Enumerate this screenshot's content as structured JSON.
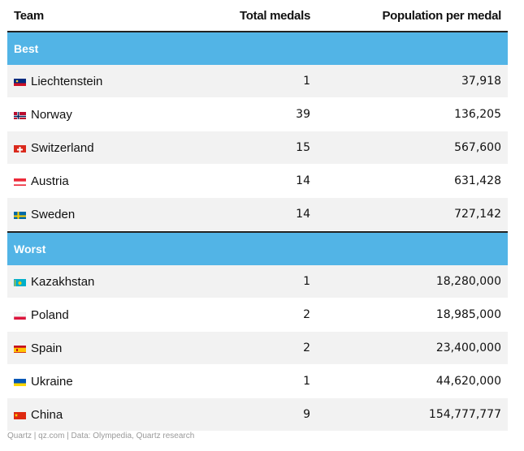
{
  "columns": [
    "Team",
    "Total medals",
    "Population per medal"
  ],
  "best_label": "Best",
  "worst_label": "Worst",
  "best": [
    {
      "team": "Liechtenstein",
      "medals": "1",
      "pop": "37,918",
      "flag": "liechtenstein-flag-icon"
    },
    {
      "team": "Norway",
      "medals": "39",
      "pop": "136,205",
      "flag": "norway-flag-icon"
    },
    {
      "team": "Switzerland",
      "medals": "15",
      "pop": "567,600",
      "flag": "switzerland-flag-icon"
    },
    {
      "team": "Austria",
      "medals": "14",
      "pop": "631,428",
      "flag": "austria-flag-icon"
    },
    {
      "team": "Sweden",
      "medals": "14",
      "pop": "727,142",
      "flag": "sweden-flag-icon"
    }
  ],
  "worst": [
    {
      "team": "Kazakhstan",
      "medals": "1",
      "pop": "18,280,000",
      "flag": "kazakhstan-flag-icon"
    },
    {
      "team": "Poland",
      "medals": "2",
      "pop": "18,985,000",
      "flag": "poland-flag-icon"
    },
    {
      "team": "Spain",
      "medals": "2",
      "pop": "23,400,000",
      "flag": "spain-flag-icon"
    },
    {
      "team": "Ukraine",
      "medals": "1",
      "pop": "44,620,000",
      "flag": "ukraine-flag-icon"
    },
    {
      "team": "China",
      "medals": "9",
      "pop": "154,777,777",
      "flag": "china-flag-icon"
    }
  ],
  "footer": "Quartz | qz.com | Data: Olympedia, Quartz research",
  "colors": {
    "section_bg": "#52b4e6",
    "row_alt": "#f2f2f2"
  },
  "chart_data": {
    "type": "table",
    "columns": [
      "Team",
      "Total medals",
      "Population per medal"
    ],
    "groups": [
      {
        "name": "Best",
        "rows": [
          [
            "Liechtenstein",
            1,
            37918
          ],
          [
            "Norway",
            39,
            136205
          ],
          [
            "Switzerland",
            15,
            567600
          ],
          [
            "Austria",
            14,
            631428
          ],
          [
            "Sweden",
            14,
            727142
          ]
        ]
      },
      {
        "name": "Worst",
        "rows": [
          [
            "Kazakhstan",
            1,
            18280000
          ],
          [
            "Poland",
            2,
            18985000
          ],
          [
            "Spain",
            2,
            23400000
          ],
          [
            "Ukraine",
            1,
            44620000
          ],
          [
            "China",
            9,
            154777777
          ]
        ]
      }
    ]
  }
}
